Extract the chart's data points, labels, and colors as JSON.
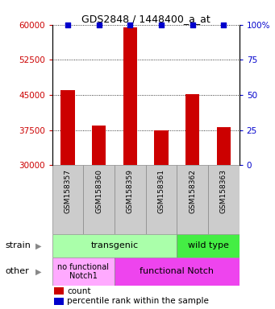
{
  "title": "GDS2848 / 1448400_a_at",
  "samples": [
    "GSM158357",
    "GSM158360",
    "GSM158359",
    "GSM158361",
    "GSM158362",
    "GSM158363"
  ],
  "counts": [
    46000,
    38500,
    59500,
    37500,
    45200,
    38200
  ],
  "ylim_left": [
    30000,
    60000
  ],
  "yticks_left": [
    30000,
    37500,
    45000,
    52500,
    60000
  ],
  "ylim_right": [
    0,
    100
  ],
  "yticks_right": [
    0,
    25,
    50,
    75,
    100
  ],
  "bar_color": "#cc0000",
  "dot_color": "#0000cc",
  "strain_transgenic_label": "transgenic",
  "strain_wildtype_label": "wild type",
  "other_nofunc_label": "no functional\nNotch1",
  "other_func_label": "functional Notch",
  "color_transgenic": "#aaffaa",
  "color_wildtype": "#44ee44",
  "color_nofunc": "#ffaaff",
  "color_func": "#ee44ee",
  "legend_count_label": "count",
  "legend_pct_label": "percentile rank within the sample",
  "left_color": "#cc0000",
  "right_color": "#0000cc",
  "label_color_strain": "#888888",
  "label_color_other": "#888888"
}
